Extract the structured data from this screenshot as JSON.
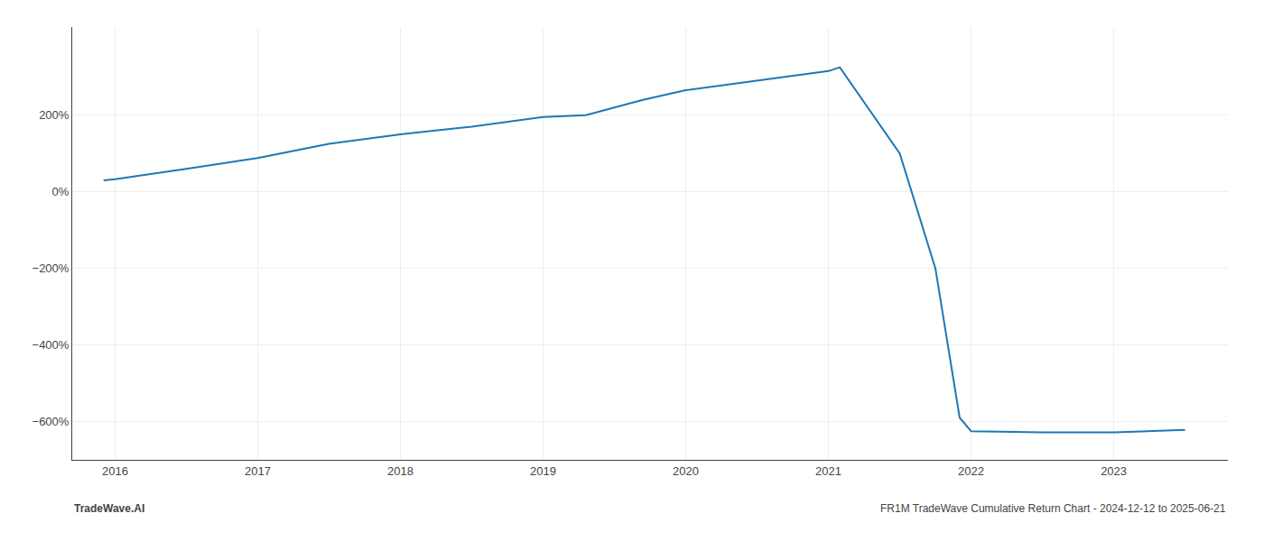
{
  "chart_data": {
    "type": "line",
    "x": [
      2015.92,
      2016.0,
      2016.5,
      2017.0,
      2017.5,
      2018.0,
      2018.5,
      2019.0,
      2019.3,
      2019.7,
      2020.0,
      2020.5,
      2021.0,
      2021.08,
      2021.5,
      2021.75,
      2021.92,
      2022.0,
      2022.5,
      2023.0,
      2023.5
    ],
    "values": [
      30,
      33,
      60,
      88,
      125,
      150,
      170,
      195,
      200,
      240,
      265,
      290,
      315,
      325,
      100,
      -200,
      -590,
      -625,
      -628,
      -628,
      -622
    ],
    "xlim": [
      2015.7,
      2023.8
    ],
    "ylim": [
      -700,
      430
    ],
    "xticks": [
      2016,
      2017,
      2018,
      2019,
      2020,
      2021,
      2022,
      2023
    ],
    "yticks": [
      {
        "value": -600,
        "label": "−600%"
      },
      {
        "value": -400,
        "label": "−400%"
      },
      {
        "value": -200,
        "label": "−200%"
      },
      {
        "value": 0,
        "label": "0%"
      },
      {
        "value": 200,
        "label": "200%"
      }
    ],
    "grid": true,
    "annotations": [
      "TradeWave.AI",
      "FR1M TradeWave Cumulative Return Chart - 2024-12-12 to 2025-06-21"
    ]
  }
}
